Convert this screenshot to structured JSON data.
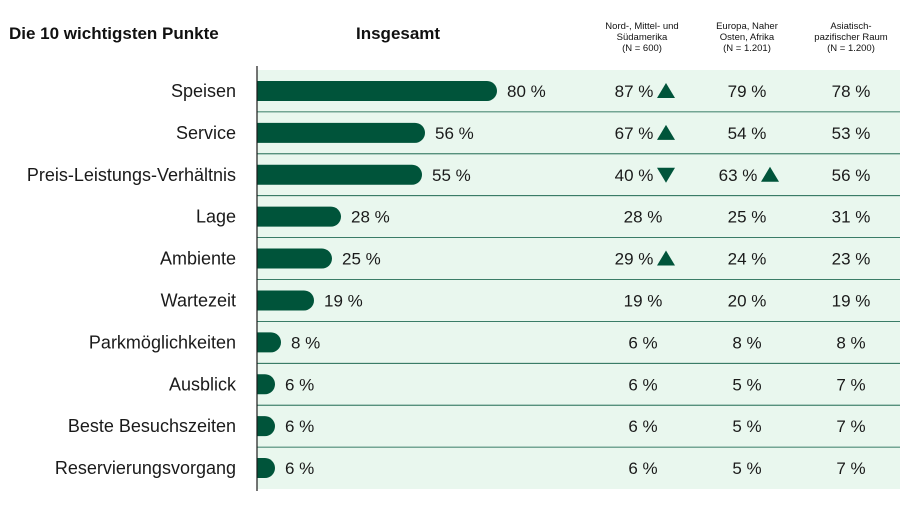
{
  "chart_data": {
    "type": "bar",
    "title": "Die 10 wichtigsten Punkte",
    "total_header": "Insgesamt",
    "categories": [
      "Speisen",
      "Service",
      "Preis-Leistungs-Verhältnis",
      "Lage",
      "Ambiente",
      "Wartezeit",
      "Parkmöglichkeiten",
      "Ausblick",
      "Beste Besuchszeiten",
      "Reservierungsvorgang"
    ],
    "values": [
      80,
      56,
      55,
      28,
      25,
      19,
      8,
      6,
      6,
      6
    ],
    "value_labels": [
      "80 %",
      "56 %",
      "55 %",
      "28 %",
      "25 %",
      "19 %",
      "8 %",
      "6 %",
      "6 %",
      "6 %"
    ],
    "xlim": [
      0,
      100
    ],
    "regions": [
      {
        "header": [
          "Nord-, Mittel- und",
          "Südamerika",
          "(N = 600)"
        ],
        "values": [
          "87 %",
          "67 %",
          "40 %",
          "28 %",
          "29 %",
          "19 %",
          "6 %",
          "6 %",
          "6 %",
          "6 %"
        ],
        "markers": [
          "up",
          "up",
          "down",
          "",
          "up",
          "",
          "",
          "",
          "",
          ""
        ]
      },
      {
        "header": [
          "Europa, Naher",
          "Osten, Afrika",
          "(N = 1.201)"
        ],
        "values": [
          "79 %",
          "54 %",
          "63 %",
          "25 %",
          "24 %",
          "20 %",
          "8 %",
          "5 %",
          "5 %",
          "5 %"
        ],
        "markers": [
          "",
          "",
          "up",
          "",
          "",
          "",
          "",
          "",
          "",
          ""
        ]
      },
      {
        "header": [
          "Asiatisch-",
          "pazifischer Raum",
          "(N = 1.200)"
        ],
        "values": [
          "78 %",
          "53 %",
          "56 %",
          "31 %",
          "23 %",
          "19 %",
          "8 %",
          "7 %",
          "7 %",
          "7 %"
        ],
        "markers": [
          "",
          "",
          "",
          "",
          "",
          "",
          "",
          "",
          "",
          ""
        ]
      }
    ],
    "colors": {
      "bar": "#00543a",
      "marker": "#00543a",
      "row_background": "#e9f7ee",
      "row_divider": "#00543a"
    }
  }
}
